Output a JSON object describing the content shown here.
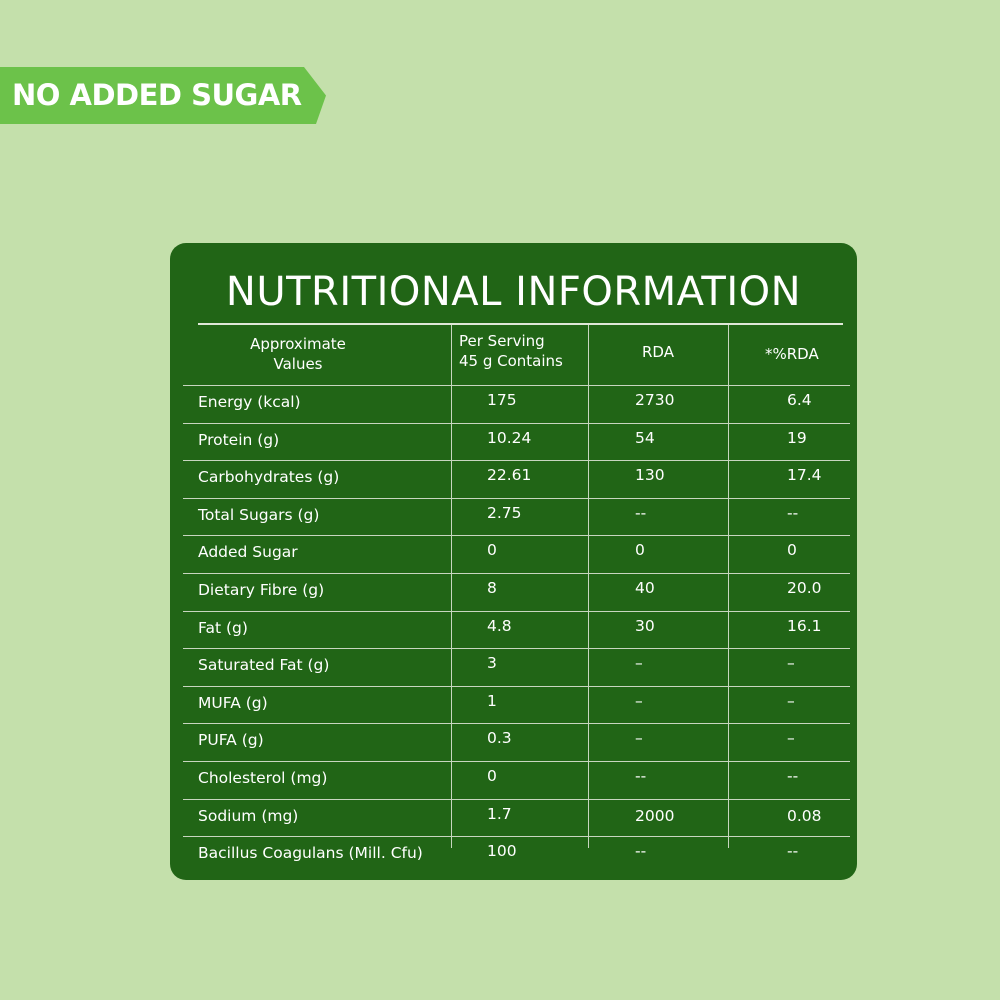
{
  "banner": {
    "label": "NO ADDED SUGAR"
  },
  "table": {
    "title": "NUTRITIONAL INFORMATION",
    "headers": {
      "col1_line1": "Approximate",
      "col1_line2": "Values",
      "col2_line1": "Per Serving",
      "col2_line2": "45 g Contains",
      "col3": "RDA",
      "col4": "*%RDA"
    },
    "rows": [
      [
        "Energy (kcal)",
        "175",
        "2730",
        "6.4"
      ],
      [
        "Protein (g)",
        "10.24",
        "54",
        "19"
      ],
      [
        "Carbohydrates (g)",
        "22.61",
        "130",
        "17.4"
      ],
      [
        "Total Sugars (g)",
        "2.75",
        "--",
        "--"
      ],
      [
        "Added Sugar",
        "0",
        "0",
        "0"
      ],
      [
        "Dietary Fibre (g)",
        "8",
        "40",
        "20.0"
      ],
      [
        "Fat (g)",
        "4.8",
        "30",
        "16.1"
      ],
      [
        "Saturated Fat (g)",
        "3",
        "–",
        "–"
      ],
      [
        "MUFA (g)",
        "1",
        "–",
        "–"
      ],
      [
        "PUFA (g)",
        "0.3",
        "–",
        "–"
      ],
      [
        "Cholesterol (mg)",
        "0",
        "--",
        "--"
      ],
      [
        "Sodium (mg)",
        "1.7",
        "2000",
        "0.08"
      ],
      [
        "Bacillus Coagulans (Mill. Cfu)",
        "100",
        "--",
        "--"
      ]
    ]
  },
  "colors": {
    "background": "#c4e0ab",
    "banner": "#6cc24a",
    "card": "#216516"
  }
}
